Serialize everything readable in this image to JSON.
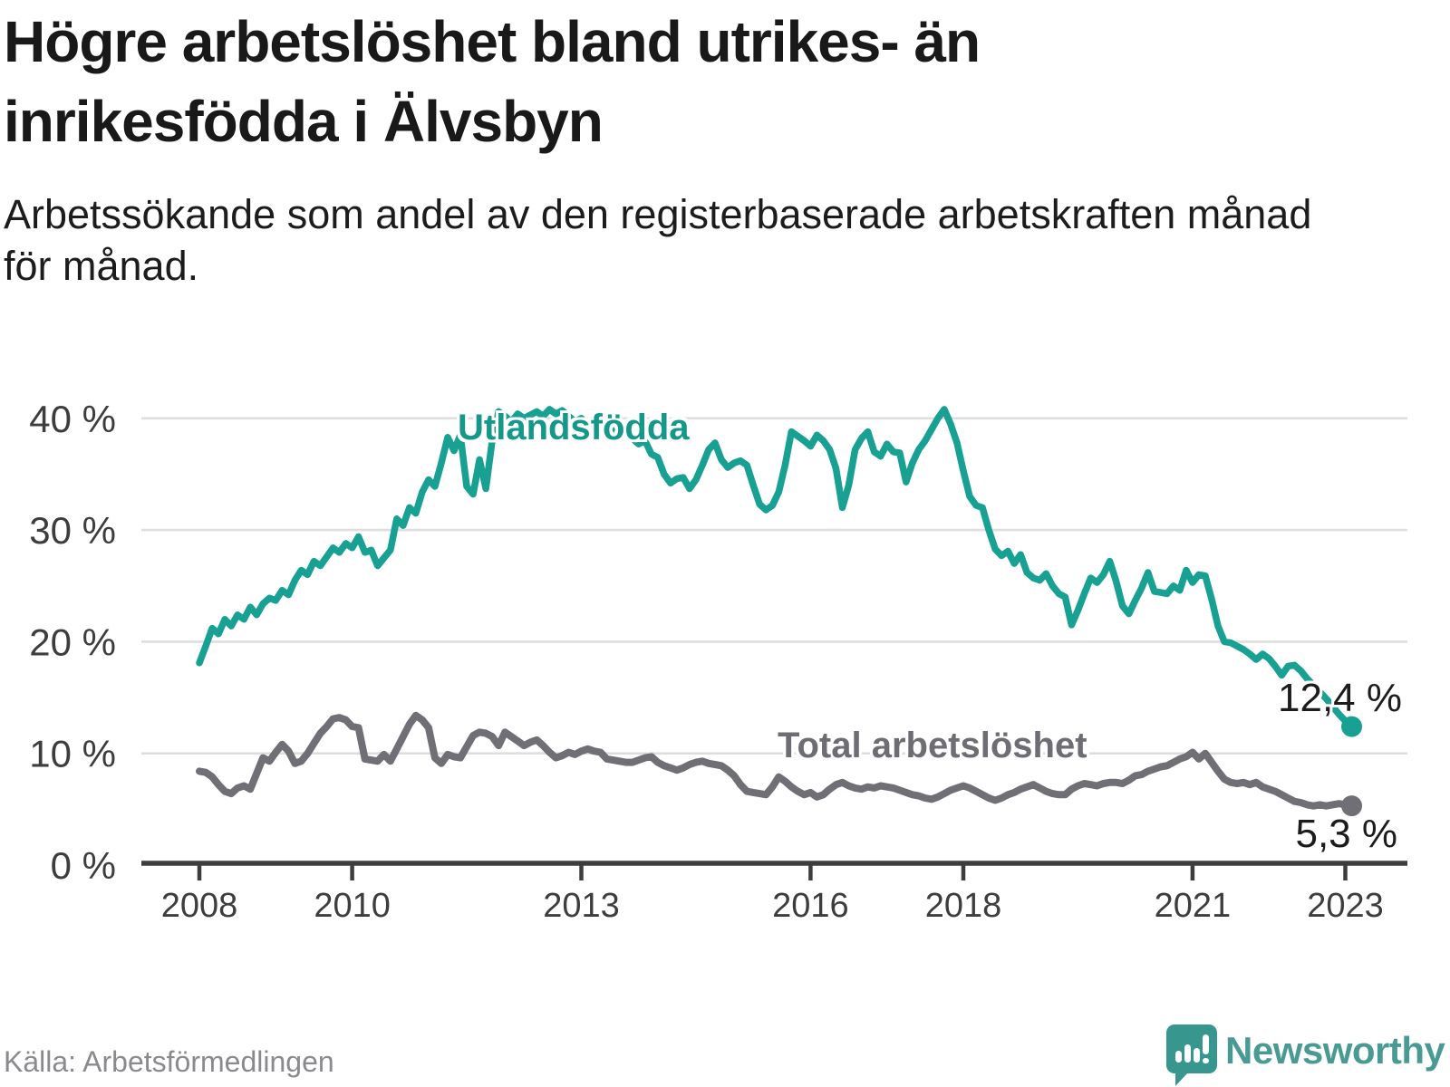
{
  "header": {
    "title_lines": [
      "Högre arbetslöshet bland utrikes- än",
      "inrikesfödda i Älvsbyn"
    ],
    "subtitle_lines": [
      "Arbetssökande som andel av den registerbaserade arbetskraften månad",
      "för månad."
    ]
  },
  "source": {
    "label": "Källa: Arbetsförmedlingen"
  },
  "brand": {
    "name": "Newsworthy",
    "bubble_color": "#37968e",
    "text_color": "#4a9a94"
  },
  "chart_data": {
    "type": "line",
    "title": "Högre arbetslöshet bland utrikes- än inrikesfödda i Älvsbyn",
    "subtitle": "Arbetssökande som andel av den registerbaserade arbetskraften månad för månad.",
    "x_axis": {
      "ticks": [
        2008,
        2010,
        2013,
        2016,
        2018,
        2021,
        2023
      ],
      "range": [
        2007.2,
        2023.8
      ]
    },
    "y_axis": {
      "ticks": [
        {
          "value": 0,
          "label": "0 %"
        },
        {
          "value": 10,
          "label": "10 %"
        },
        {
          "value": 20,
          "label": "20 %"
        },
        {
          "value": 30,
          "label": "30 %"
        },
        {
          "value": 40,
          "label": "40 %"
        }
      ],
      "range": [
        0,
        43
      ],
      "grid": true
    },
    "legend_position": "inline-labels",
    "series": [
      {
        "name": "Utlandsfödda",
        "color": "#18a193",
        "start_year": 2008,
        "step_months": 1,
        "end_label": "12,4 %",
        "end_value": 12.4,
        "values": [
          18.1,
          19.6,
          21.2,
          20.7,
          22.0,
          21.4,
          22.4,
          22.0,
          23.1,
          22.4,
          23.4,
          23.9,
          23.7,
          24.6,
          24.2,
          25.5,
          26.4,
          26.0,
          27.2,
          26.8,
          27.6,
          28.4,
          28.0,
          28.8,
          28.4,
          29.4,
          28.0,
          28.2,
          26.8,
          27.5,
          28.2,
          31.0,
          30.4,
          32.0,
          31.5,
          33.4,
          34.5,
          33.9,
          36.0,
          38.3,
          37.1,
          38.5,
          33.9,
          33.2,
          36.3,
          33.7,
          38.0,
          40.6,
          40.2,
          39.7,
          40.4,
          40.0,
          40.3,
          40.6,
          40.2,
          40.8,
          40.4,
          40.7,
          40.2,
          39.7,
          40.0,
          39.4,
          39.8,
          39.2,
          38.7,
          39.0,
          38.4,
          38.8,
          38.2,
          37.7,
          38.0,
          36.8,
          36.5,
          35.0,
          34.2,
          34.6,
          34.7,
          33.7,
          34.5,
          35.8,
          37.2,
          37.8,
          36.3,
          35.6,
          36.0,
          36.2,
          35.8,
          34.0,
          32.3,
          31.8,
          32.2,
          33.4,
          35.8,
          38.8,
          38.4,
          38.0,
          37.5,
          38.5,
          38.0,
          37.2,
          35.5,
          32.0,
          34.0,
          37.2,
          38.2,
          38.8,
          37.0,
          36.6,
          37.7,
          37.0,
          36.9,
          34.3,
          36.0,
          37.2,
          38.0,
          39.0,
          40.0,
          40.8,
          39.5,
          37.8,
          35.3,
          33.0,
          32.2,
          32.0,
          30.0,
          28.3,
          27.7,
          28.1,
          27.0,
          27.8,
          26.2,
          25.7,
          25.5,
          26.1,
          25.0,
          24.3,
          24.0,
          21.5,
          22.8,
          24.3,
          25.7,
          25.3,
          26.0,
          27.2,
          25.4,
          23.2,
          22.5,
          23.7,
          24.8,
          26.2,
          24.5,
          24.4,
          24.3,
          25.0,
          24.6,
          26.4,
          25.3,
          26.0,
          25.9,
          23.8,
          21.4,
          20.0,
          19.9,
          19.6,
          19.3,
          18.9,
          18.4,
          18.9,
          18.5,
          17.8,
          17.0,
          17.8,
          17.9,
          17.4,
          16.7,
          16.1,
          15.5,
          14.9,
          14.2,
          13.5,
          12.9,
          12.4
        ]
      },
      {
        "name": "Total arbetslöshet",
        "color": "#706f75",
        "start_year": 2008,
        "step_months": 1,
        "end_label": "5,3 %",
        "end_value": 5.3,
        "values": [
          8.4,
          8.3,
          7.9,
          7.2,
          6.6,
          6.4,
          6.9,
          7.1,
          6.8,
          8.2,
          9.6,
          9.3,
          10.1,
          10.8,
          10.2,
          9.1,
          9.3,
          10.0,
          10.9,
          11.8,
          12.4,
          13.1,
          13.2,
          13.0,
          12.4,
          12.3,
          9.5,
          9.4,
          9.3,
          9.9,
          9.3,
          10.4,
          11.5,
          12.6,
          13.4,
          13.0,
          12.3,
          9.6,
          9.1,
          9.9,
          9.7,
          9.6,
          10.6,
          11.6,
          11.9,
          11.8,
          11.5,
          10.7,
          11.9,
          11.5,
          11.1,
          10.7,
          11.0,
          11.2,
          10.7,
          10.1,
          9.6,
          9.8,
          10.1,
          9.9,
          10.2,
          10.4,
          10.2,
          10.1,
          9.5,
          9.4,
          9.3,
          9.2,
          9.2,
          9.4,
          9.6,
          9.7,
          9.2,
          8.9,
          8.7,
          8.5,
          8.7,
          9.0,
          9.2,
          9.3,
          9.1,
          9.0,
          8.9,
          8.5,
          8.0,
          7.2,
          6.6,
          6.5,
          6.4,
          6.3,
          7.0,
          7.9,
          7.5,
          7.0,
          6.6,
          6.3,
          6.5,
          6.1,
          6.3,
          6.8,
          7.2,
          7.4,
          7.1,
          6.9,
          6.8,
          7.0,
          6.9,
          7.1,
          7.0,
          6.9,
          6.7,
          6.5,
          6.3,
          6.2,
          6.0,
          5.9,
          6.1,
          6.4,
          6.7,
          6.9,
          7.1,
          6.9,
          6.6,
          6.3,
          6.0,
          5.8,
          6.0,
          6.3,
          6.5,
          6.8,
          7.0,
          7.2,
          6.9,
          6.6,
          6.4,
          6.3,
          6.3,
          6.8,
          7.1,
          7.3,
          7.2,
          7.1,
          7.3,
          7.4,
          7.4,
          7.3,
          7.6,
          8.0,
          8.1,
          8.4,
          8.6,
          8.8,
          8.9,
          9.2,
          9.5,
          9.7,
          10.1,
          9.5,
          10.0,
          9.2,
          8.4,
          7.7,
          7.4,
          7.3,
          7.4,
          7.2,
          7.4,
          7.0,
          6.8,
          6.6,
          6.3,
          6.0,
          5.7,
          5.6,
          5.4,
          5.3,
          5.4,
          5.3,
          5.4,
          5.5,
          5.4,
          5.3
        ]
      }
    ]
  }
}
